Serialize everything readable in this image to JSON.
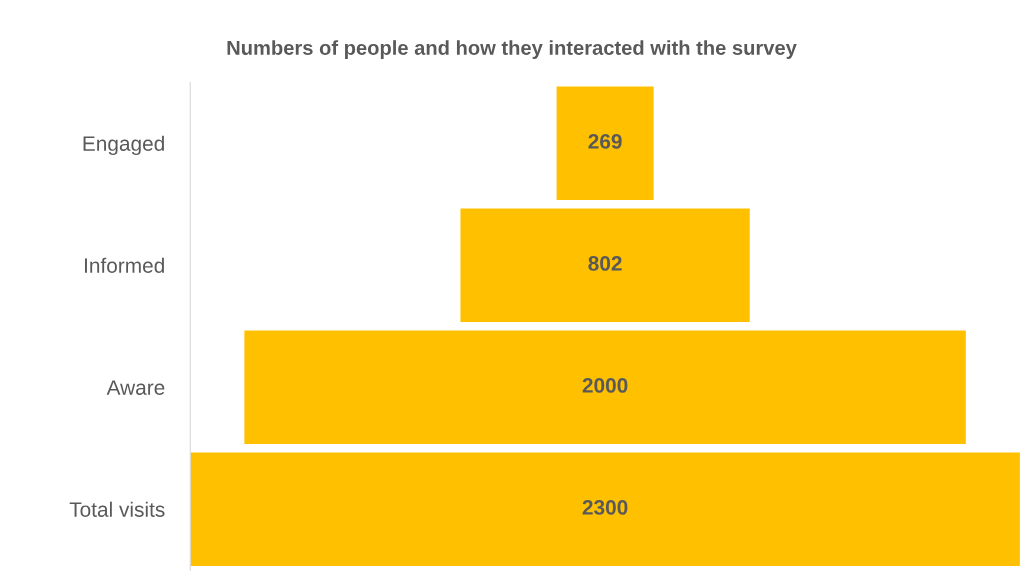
{
  "chart_data": {
    "type": "other",
    "title": "Numbers of people and how they interacted with the survey",
    "categories": [
      "Engaged",
      "Informed",
      "Aware",
      "Total visits"
    ],
    "values": [
      269,
      802,
      2000,
      2300
    ],
    "color": "#ffc000",
    "data_labels": true
  }
}
